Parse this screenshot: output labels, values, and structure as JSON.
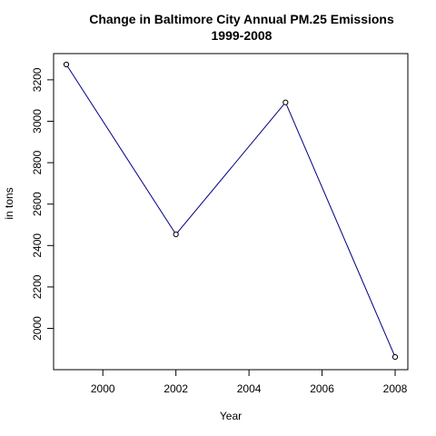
{
  "chart_data": {
    "type": "line",
    "title": "Change in Baltimore City Annual PM.25 Emissions",
    "subtitle": "1999-2008",
    "xlabel": "Year",
    "ylabel": "in tons",
    "x": [
      1999,
      2002,
      2005,
      2008
    ],
    "values": [
      3274,
      2454,
      3091,
      1862
    ],
    "xlim": [
      1999,
      2008
    ],
    "ylim": [
      1862,
      3274
    ],
    "xticks": [
      2000,
      2002,
      2004,
      2006,
      2008
    ],
    "yticks": [
      2000,
      2200,
      2400,
      2600,
      2800,
      3000,
      3200
    ],
    "grid": false,
    "line_color": "#000080",
    "marker": "open-circle"
  }
}
